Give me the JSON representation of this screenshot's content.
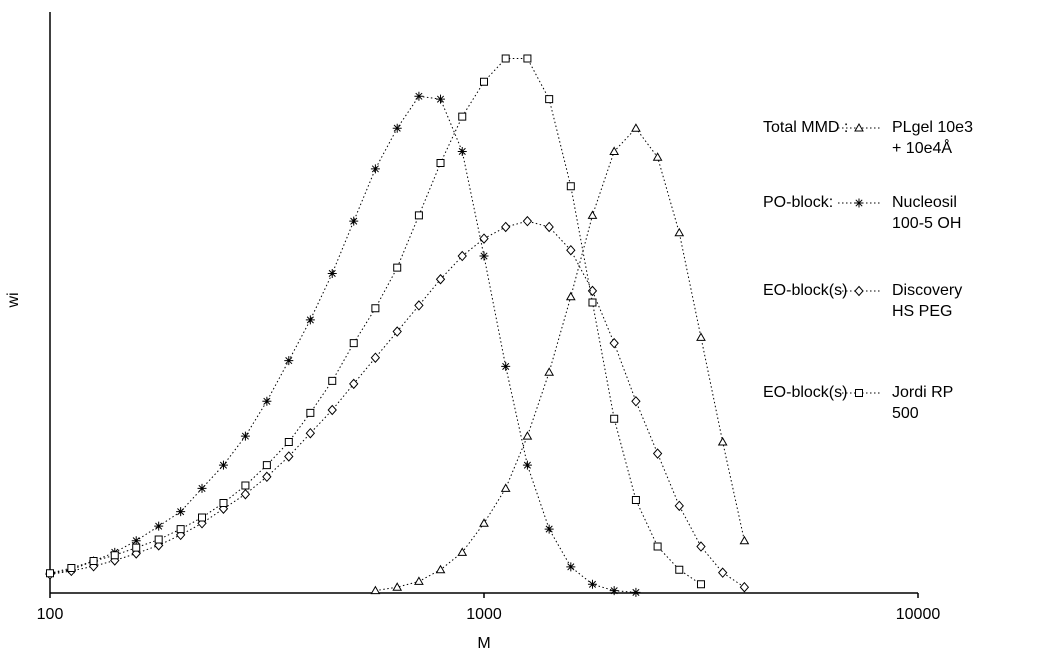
{
  "chart_data": {
    "type": "line",
    "x_label": "M",
    "y_label": "wi",
    "xscale": "log",
    "xlim": [
      100,
      10000
    ],
    "xticks": [
      100,
      1000,
      10000
    ],
    "ylim": [
      0,
      100
    ],
    "grid": false,
    "legend_position": "right",
    "series": [
      {
        "name": "PLgel 10e3\n+ 10e4Å",
        "legend_group": "Total MMD :",
        "marker": "triangle",
        "color": "#000000",
        "x": [
          562,
          631,
          708,
          794,
          891,
          1000,
          1122,
          1259,
          1413,
          1585,
          1778,
          1995,
          2239,
          2512,
          2818,
          3162,
          3548,
          3981
        ],
        "values": [
          0.4,
          1,
          2,
          4,
          7,
          12,
          18,
          27,
          38,
          51,
          65,
          76,
          80,
          75,
          62,
          44,
          26,
          9
        ]
      },
      {
        "name": "Nucleosil\n100-5 OH",
        "legend_group": "PO-block:",
        "marker": "star",
        "color": "#000000",
        "x": [
          100,
          112,
          126,
          141,
          158,
          178,
          200,
          224,
          251,
          282,
          316,
          355,
          398,
          447,
          501,
          562,
          631,
          708,
          794,
          891,
          1000,
          1122,
          1259,
          1413,
          1585,
          1778,
          1995,
          2239
        ],
        "values": [
          3.4,
          4,
          5.5,
          7,
          9,
          11.5,
          14,
          18,
          22,
          27,
          33,
          40,
          47,
          55,
          64,
          73,
          80,
          85.5,
          85,
          76,
          58,
          39,
          22,
          11,
          4.5,
          1.5,
          0.4,
          0.1
        ]
      },
      {
        "name": "Discovery\nHS PEG",
        "legend_group": "EO-block(s)",
        "marker": "diamond",
        "color": "#000000",
        "x": [
          100,
          112,
          126,
          141,
          158,
          178,
          200,
          224,
          251,
          282,
          316,
          355,
          398,
          447,
          501,
          562,
          631,
          708,
          794,
          891,
          1000,
          1122,
          1259,
          1413,
          1585,
          1778,
          1995,
          2239,
          2512,
          2818,
          3162,
          3548,
          3981
        ],
        "values": [
          3.2,
          3.8,
          4.6,
          5.6,
          6.8,
          8.2,
          10,
          12,
          14.5,
          17,
          20,
          23.5,
          27.5,
          31.5,
          36,
          40.5,
          45,
          49.5,
          54,
          58,
          61,
          63,
          64,
          63,
          59,
          52,
          43,
          33,
          24,
          15,
          8,
          3.5,
          1
        ]
      },
      {
        "name": "Jordi RP\n500",
        "legend_group": "EO-block(s)",
        "marker": "square",
        "color": "#000000",
        "x": [
          100,
          112,
          126,
          141,
          158,
          178,
          200,
          224,
          251,
          282,
          316,
          355,
          398,
          447,
          501,
          562,
          631,
          708,
          794,
          891,
          1000,
          1122,
          1259,
          1413,
          1585,
          1778,
          1995,
          2239,
          2512,
          2818,
          3162
        ],
        "values": [
          3.4,
          4.3,
          5.5,
          6.5,
          7.8,
          9.2,
          11,
          13,
          15.5,
          18.5,
          22,
          26,
          31,
          36.5,
          43,
          49,
          56,
          65,
          74,
          82,
          88,
          92,
          92,
          85,
          70,
          50,
          30,
          16,
          8,
          4,
          1.5
        ]
      }
    ]
  }
}
